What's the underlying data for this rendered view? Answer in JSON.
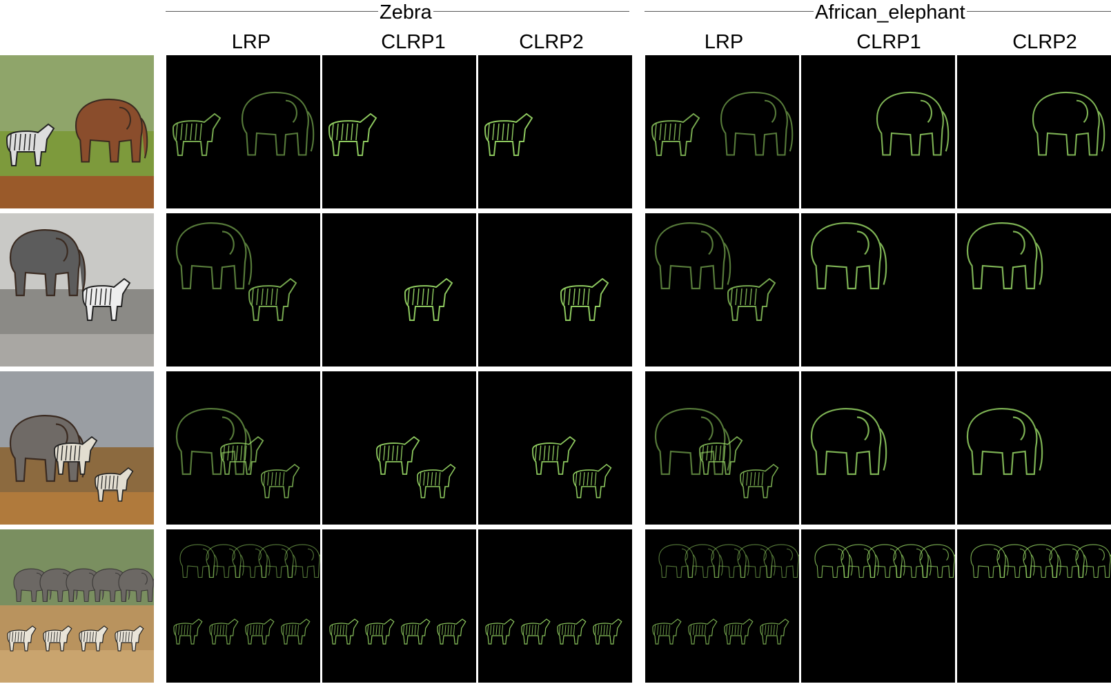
{
  "groups": [
    {
      "label": "Zebra"
    },
    {
      "label": "African_elephant"
    }
  ],
  "methods": [
    "LRP",
    "CLRP1",
    "CLRP2"
  ],
  "rows": [
    {
      "photo_icon": "zebra-and-elephant-photo",
      "heat": {
        "zebra": [
          "both",
          "zebra",
          "zebra"
        ],
        "elephant": [
          "both",
          "elephant",
          "elephant"
        ]
      }
    },
    {
      "photo_icon": "elephant-and-zebra-waterhole-photo",
      "heat": {
        "zebra": [
          "both",
          "zebra",
          "zebra"
        ],
        "elephant": [
          "both",
          "elephant",
          "elephant"
        ]
      }
    },
    {
      "photo_icon": "elephant-spraying-water-zebra-herd-photo",
      "heat": {
        "zebra": [
          "both",
          "zebra",
          "zebra"
        ],
        "elephant": [
          "both",
          "elephant",
          "elephant"
        ]
      }
    },
    {
      "photo_icon": "elephant-herd-zebras-photo",
      "heat": {
        "zebra": [
          "both",
          "zebra",
          "zebra"
        ],
        "elephant": [
          "both",
          "elephant",
          "elephant"
        ]
      }
    }
  ],
  "colors": {
    "heatmap_bg": "#000000",
    "relevance": "#9ee06a"
  }
}
